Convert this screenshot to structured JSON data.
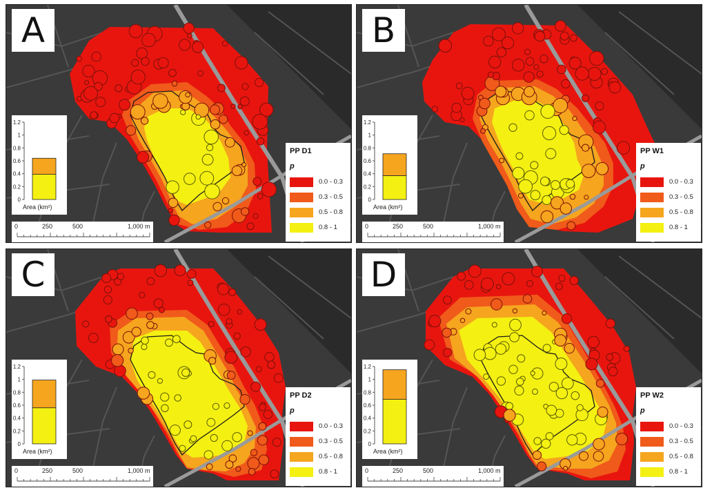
{
  "colors": {
    "background": "#3a3a3a",
    "road_main": "#9a9a9a",
    "road_minor": "#555555",
    "class_0_0_3": "#e8150f",
    "class_0_3_0_5": "#f05a1a",
    "class_0_5_0_8": "#f5a51e",
    "class_0_8_1": "#f4f012",
    "outline": "#1a1a1a"
  },
  "legend_classes": [
    "0.0 - 0.3",
    "0.3 - 0.5",
    "0.5 - 0.8",
    "0.8 - 1"
  ],
  "legend_variable": "p",
  "area_axis": {
    "label": "Area (km²)",
    "ticks": [
      "0",
      "0.2",
      "0.4",
      "0.6",
      "0.8",
      "1",
      "1.2"
    ],
    "max": 1.2
  },
  "scale_bar": {
    "labels": [
      "0",
      "250",
      "500",
      "1,000 m"
    ]
  },
  "panels": [
    {
      "letter": "A",
      "legend_title": "PP D1",
      "area_bar": {
        "lower": 0.39,
        "total": 0.64
      }
    },
    {
      "letter": "B",
      "legend_title": "PP W1",
      "area_bar": {
        "lower": 0.37,
        "total": 0.71
      }
    },
    {
      "letter": "C",
      "legend_title": "PP D2",
      "area_bar": {
        "lower": 0.56,
        "total": 0.99
      }
    },
    {
      "letter": "D",
      "legend_title": "PP W2",
      "area_bar": {
        "lower": 0.69,
        "total": 1.15
      }
    }
  ]
}
